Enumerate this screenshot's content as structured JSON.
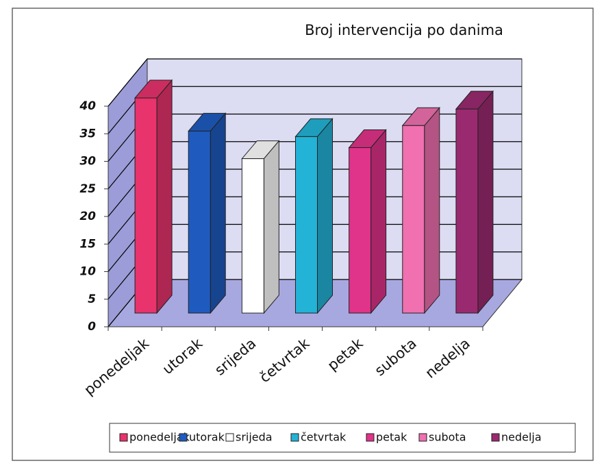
{
  "chart_data": {
    "type": "bar3d",
    "title": "Broj intervencija po danima",
    "categories": [
      "ponedeljak",
      "utorak",
      "srijeda",
      "četvrtak",
      "petak",
      "subota",
      "nedelja"
    ],
    "values": [
      39,
      33,
      28,
      32,
      30,
      34,
      37
    ],
    "colors": [
      "#e8336d",
      "#1f5bbf",
      "#ffffff",
      "#22b3d6",
      "#e0338a",
      "#f070b0",
      "#9a2a70"
    ],
    "ylim": [
      0,
      40
    ],
    "yticks": [
      0,
      5,
      10,
      15,
      20,
      25,
      30,
      35,
      40
    ],
    "grid": true,
    "legend": "bottom"
  }
}
